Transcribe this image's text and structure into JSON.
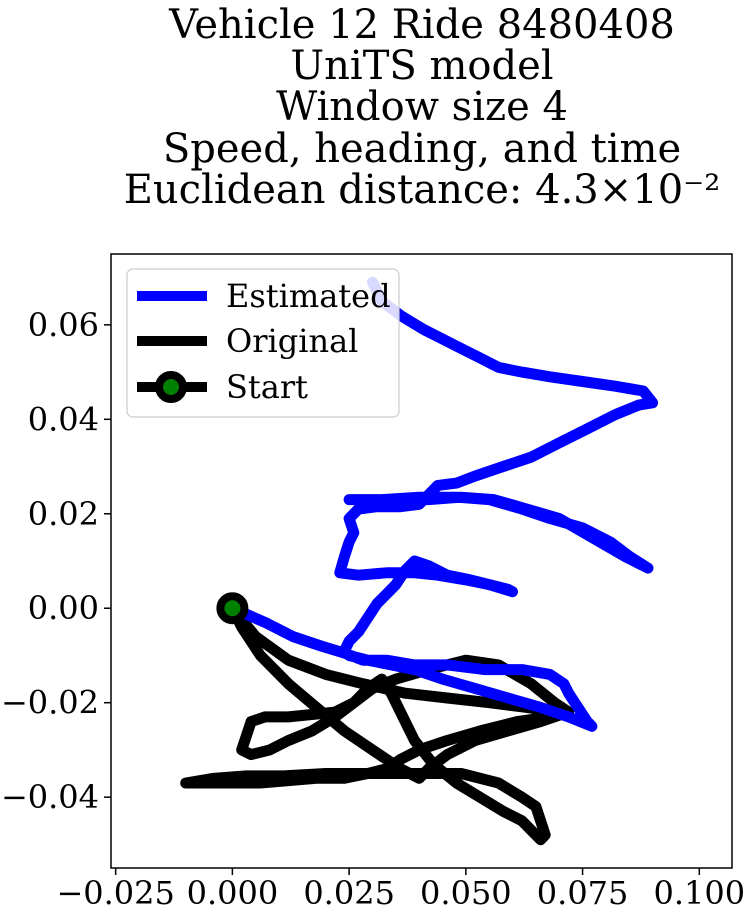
{
  "chart_data": {
    "type": "line",
    "title": [
      "Vehicle 12 Ride 8480408",
      "UniTS model",
      "Window size 4",
      "Speed, heading, and time",
      "Euclidean distance: 4.3×10⁻²"
    ],
    "xlabel": "",
    "ylabel": "",
    "xlim": [
      -0.026,
      0.107
    ],
    "ylim": [
      -0.055,
      0.075
    ],
    "xticks": [
      -0.025,
      0.0,
      0.025,
      0.05,
      0.075,
      0.1
    ],
    "xtick_labels": [
      "−0.025",
      "0.000",
      "0.025",
      "0.050",
      "0.075",
      "0.100"
    ],
    "yticks": [
      -0.04,
      -0.02,
      0.0,
      0.02,
      0.04,
      0.06
    ],
    "ytick_labels": [
      "−0.04",
      "−0.02",
      "0.00",
      "0.02",
      "0.04",
      "0.06"
    ],
    "grid": false,
    "legend_position": "top-left",
    "legend": [
      "Estimated",
      "Original",
      "Start"
    ],
    "colors": {
      "estimated": "#0000ff",
      "original": "#000000",
      "start_marker_fill": "#008000",
      "start_marker_edge": "#000000"
    },
    "series": [
      {
        "name": "Estimated",
        "points": [
          [
            0.0,
            0.0
          ],
          [
            0.007,
            -0.003
          ],
          [
            0.013,
            -0.006
          ],
          [
            0.019,
            -0.008
          ],
          [
            0.024,
            -0.0095
          ],
          [
            0.028,
            -0.011
          ],
          [
            0.033,
            -0.011
          ],
          [
            0.039,
            -0.012
          ],
          [
            0.046,
            -0.012
          ],
          [
            0.054,
            -0.013
          ],
          [
            0.062,
            -0.013
          ],
          [
            0.068,
            -0.014
          ],
          [
            0.071,
            -0.016
          ],
          [
            0.072,
            -0.018
          ],
          [
            0.074,
            -0.021
          ],
          [
            0.076,
            -0.024
          ],
          [
            0.077,
            -0.025
          ],
          [
            0.072,
            -0.023
          ],
          [
            0.066,
            -0.021
          ],
          [
            0.059,
            -0.019
          ],
          [
            0.052,
            -0.017
          ],
          [
            0.045,
            -0.015
          ],
          [
            0.039,
            -0.013
          ],
          [
            0.034,
            -0.012
          ],
          [
            0.029,
            -0.011
          ],
          [
            0.025,
            -0.01
          ],
          [
            0.024,
            -0.009
          ],
          [
            0.025,
            -0.007
          ],
          [
            0.027,
            -0.005
          ],
          [
            0.029,
            -0.002
          ],
          [
            0.031,
            0.001
          ],
          [
            0.033,
            0.003
          ],
          [
            0.035,
            0.005
          ],
          [
            0.037,
            0.008
          ],
          [
            0.039,
            0.01
          ],
          [
            0.042,
            0.009
          ],
          [
            0.046,
            0.007
          ],
          [
            0.051,
            0.006
          ],
          [
            0.055,
            0.005
          ],
          [
            0.059,
            0.004
          ],
          [
            0.06,
            0.0035
          ],
          [
            0.055,
            0.005
          ],
          [
            0.05,
            0.006
          ],
          [
            0.044,
            0.007
          ],
          [
            0.039,
            0.0075
          ],
          [
            0.033,
            0.0075
          ],
          [
            0.027,
            0.007
          ],
          [
            0.023,
            0.0075
          ],
          [
            0.024,
            0.011
          ],
          [
            0.025,
            0.014
          ],
          [
            0.026,
            0.016
          ],
          [
            0.025,
            0.019
          ],
          [
            0.027,
            0.021
          ],
          [
            0.031,
            0.0215
          ],
          [
            0.036,
            0.0215
          ],
          [
            0.04,
            0.022
          ],
          [
            0.042,
            0.024
          ],
          [
            0.044,
            0.026
          ],
          [
            0.048,
            0.0265
          ],
          [
            0.052,
            0.028
          ],
          [
            0.058,
            0.03
          ],
          [
            0.064,
            0.032
          ],
          [
            0.07,
            0.035
          ],
          [
            0.076,
            0.038
          ],
          [
            0.082,
            0.041
          ],
          [
            0.087,
            0.043
          ],
          [
            0.09,
            0.0435
          ],
          [
            0.088,
            0.046
          ],
          [
            0.082,
            0.047
          ],
          [
            0.075,
            0.048
          ],
          [
            0.068,
            0.049
          ],
          [
            0.062,
            0.05
          ],
          [
            0.057,
            0.051
          ],
          [
            0.053,
            0.053
          ],
          [
            0.049,
            0.055
          ],
          [
            0.045,
            0.057
          ],
          [
            0.041,
            0.059
          ],
          [
            0.036,
            0.062
          ],
          [
            0.032,
            0.065
          ],
          [
            0.03,
            0.069
          ]
        ],
        "return_branch": [
          [
            0.025,
            0.023
          ],
          [
            0.032,
            0.023
          ],
          [
            0.04,
            0.0235
          ],
          [
            0.048,
            0.0235
          ],
          [
            0.055,
            0.023
          ],
          [
            0.062,
            0.021
          ],
          [
            0.068,
            0.019
          ],
          [
            0.075,
            0.017
          ],
          [
            0.081,
            0.014
          ],
          [
            0.085,
            0.011
          ],
          [
            0.089,
            0.0085
          ],
          [
            0.084,
            0.011
          ],
          [
            0.077,
            0.015
          ],
          [
            0.07,
            0.019
          ],
          [
            0.063,
            0.021
          ],
          [
            0.056,
            0.023
          ],
          [
            0.049,
            0.0235
          ],
          [
            0.042,
            0.023
          ],
          [
            0.035,
            0.023
          ],
          [
            0.028,
            0.023
          ]
        ]
      },
      {
        "name": "Original",
        "points": [
          [
            0.0,
            0.0
          ],
          [
            0.005,
            -0.006
          ],
          [
            0.012,
            -0.011
          ],
          [
            0.02,
            -0.014
          ],
          [
            0.028,
            -0.016
          ],
          [
            0.037,
            -0.018
          ],
          [
            0.046,
            -0.019
          ],
          [
            0.055,
            -0.02
          ],
          [
            0.063,
            -0.021
          ],
          [
            0.07,
            -0.022
          ],
          [
            0.068,
            -0.023
          ],
          [
            0.061,
            -0.024
          ],
          [
            0.053,
            -0.026
          ],
          [
            0.046,
            -0.028
          ],
          [
            0.04,
            -0.03
          ],
          [
            0.036,
            -0.032
          ],
          [
            0.033,
            -0.034
          ],
          [
            0.029,
            -0.035
          ],
          [
            0.024,
            -0.036
          ],
          [
            0.018,
            -0.036
          ],
          [
            0.012,
            -0.0365
          ],
          [
            0.006,
            -0.037
          ],
          [
            0.0,
            -0.037
          ],
          [
            -0.006,
            -0.037
          ],
          [
            -0.01,
            -0.037
          ],
          [
            -0.004,
            -0.036
          ],
          [
            0.003,
            -0.0355
          ],
          [
            0.011,
            -0.0355
          ],
          [
            0.02,
            -0.035
          ],
          [
            0.03,
            -0.035
          ],
          [
            0.04,
            -0.035
          ],
          [
            0.049,
            -0.035
          ],
          [
            0.057,
            -0.037
          ],
          [
            0.062,
            -0.04
          ],
          [
            0.065,
            -0.042
          ],
          [
            0.066,
            -0.045
          ],
          [
            0.067,
            -0.048
          ],
          [
            0.066,
            -0.049
          ],
          [
            0.064,
            -0.047
          ],
          [
            0.062,
            -0.045
          ],
          [
            0.058,
            -0.043
          ],
          [
            0.053,
            -0.04
          ],
          [
            0.048,
            -0.037
          ],
          [
            0.043,
            -0.033
          ],
          [
            0.039,
            -0.028
          ],
          [
            0.036,
            -0.022
          ],
          [
            0.034,
            -0.018
          ],
          [
            0.032,
            -0.015
          ],
          [
            0.029,
            -0.017
          ],
          [
            0.026,
            -0.02
          ],
          [
            0.022,
            -0.023
          ],
          [
            0.017,
            -0.026
          ],
          [
            0.012,
            -0.028
          ],
          [
            0.008,
            -0.03
          ],
          [
            0.004,
            -0.031
          ],
          [
            0.002,
            -0.03
          ],
          [
            0.003,
            -0.027
          ],
          [
            0.004,
            -0.024
          ],
          [
            0.007,
            -0.023
          ],
          [
            0.012,
            -0.023
          ],
          [
            0.017,
            -0.0225
          ],
          [
            0.022,
            -0.022
          ],
          [
            0.026,
            -0.02
          ],
          [
            0.03,
            -0.017
          ],
          [
            0.035,
            -0.015
          ],
          [
            0.042,
            -0.013
          ],
          [
            0.05,
            -0.011
          ],
          [
            0.057,
            -0.012
          ],
          [
            0.064,
            -0.016
          ],
          [
            0.069,
            -0.02
          ],
          [
            0.072,
            -0.022
          ],
          [
            0.066,
            -0.024
          ],
          [
            0.059,
            -0.026
          ],
          [
            0.052,
            -0.028
          ],
          [
            0.046,
            -0.031
          ],
          [
            0.042,
            -0.034
          ],
          [
            0.04,
            -0.036
          ],
          [
            0.036,
            -0.034
          ],
          [
            0.03,
            -0.03
          ],
          [
            0.024,
            -0.026
          ],
          [
            0.018,
            -0.021
          ],
          [
            0.012,
            -0.016
          ],
          [
            0.006,
            -0.01
          ],
          [
            0.002,
            -0.004
          ],
          [
            0.0,
            0.0
          ]
        ]
      }
    ],
    "start_point": [
      0.0,
      0.0
    ]
  }
}
